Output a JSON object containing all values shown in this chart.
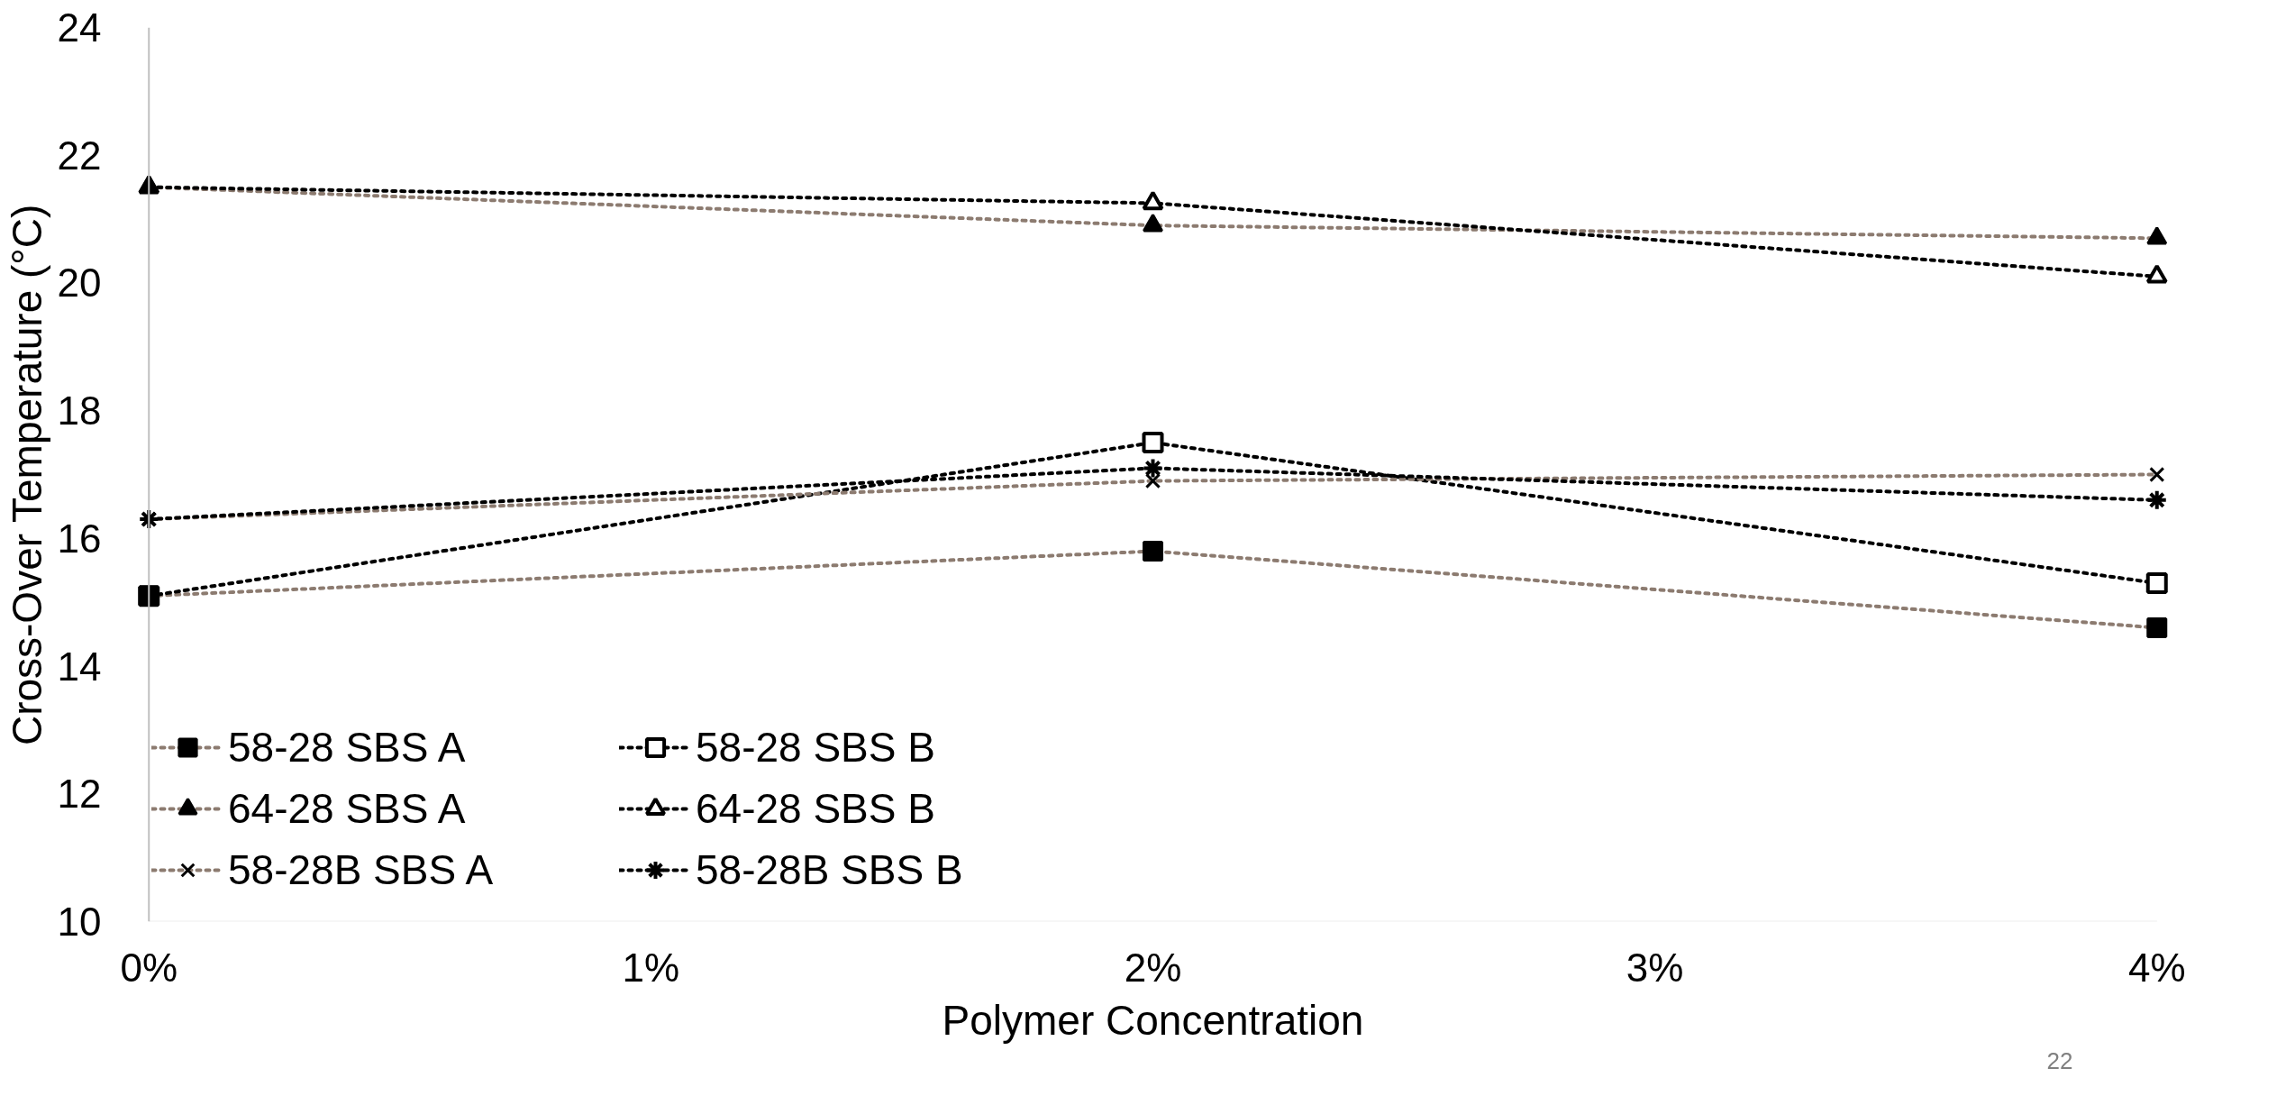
{
  "chart_data": {
    "type": "line",
    "xlabel": "Polymer Concentration",
    "ylabel": "Cross-Over Temperature (°C)",
    "x": [
      0,
      2,
      4
    ],
    "xlim": [
      0,
      4
    ],
    "xticks": [
      {
        "value": 0,
        "label": "0%"
      },
      {
        "value": 1,
        "label": "1%"
      },
      {
        "value": 2,
        "label": "2%"
      },
      {
        "value": 3,
        "label": "3%"
      },
      {
        "value": 4,
        "label": "4%"
      }
    ],
    "ylim": [
      10,
      24
    ],
    "yticks": [
      10,
      12,
      14,
      16,
      18,
      20,
      22,
      24
    ],
    "grid": false,
    "legend": "bottom left",
    "line_style": "dotted",
    "series": [
      {
        "name": "58-28 SBS A",
        "color": "#8c7b70",
        "marker": "square",
        "values": [
          15.1,
          15.8,
          14.6
        ]
      },
      {
        "name": "58-28 SBS B",
        "color": "#000000",
        "marker": "square",
        "values": [
          15.1,
          17.5,
          15.3
        ]
      },
      {
        "name": "64-28 SBS A",
        "color": "#8c7b70",
        "marker": "triangle",
        "values": [
          21.5,
          20.9,
          20.7
        ]
      },
      {
        "name": "64-28 SBS B",
        "color": "#000000",
        "marker": "triangle",
        "values": [
          21.5,
          21.25,
          20.1
        ]
      },
      {
        "name": "58-28B SBS A",
        "color": "#8c7b70",
        "marker": "cross",
        "values": [
          16.3,
          16.9,
          17.0
        ]
      },
      {
        "name": "58-28B SBS B",
        "color": "#000000",
        "marker": "cross",
        "values": [
          16.3,
          17.1,
          16.6
        ]
      }
    ],
    "annotations": [
      "22"
    ]
  }
}
